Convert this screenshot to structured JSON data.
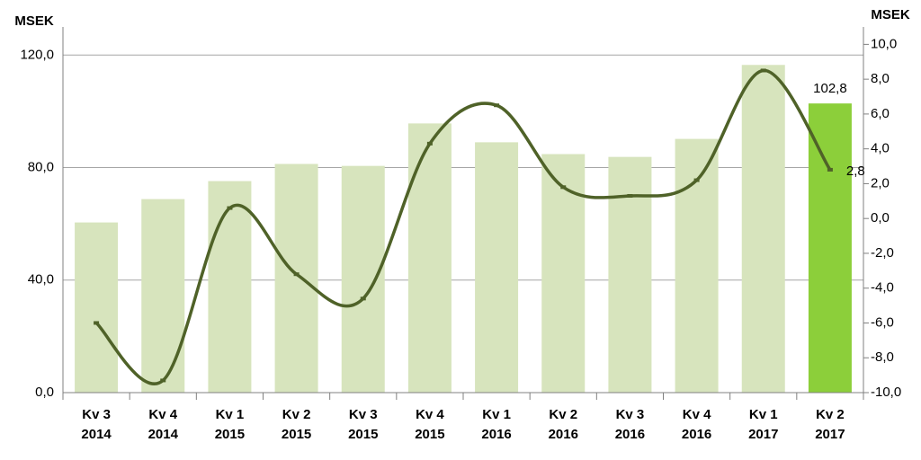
{
  "chart_data": {
    "type": "bar-line",
    "y_label": "MSEK",
    "y2_label": "MSEK",
    "categories": [
      "Kv 3\n2014",
      "Kv 4\n2014",
      "Kv 1\n2015",
      "Kv 2\n2015",
      "Kv 3\n2015",
      "Kv 4\n2015",
      "Kv 1\n2016",
      "Kv 2\n2016",
      "Kv 3\n2016",
      "Kv 4\n2016",
      "Kv 1\n2017",
      "Kv 2\n2017"
    ],
    "series": [
      {
        "type": "bar",
        "colors": [
          "#d7e4bd",
          "#d7e4bd",
          "#d7e4bd",
          "#d7e4bd",
          "#d7e4bd",
          "#d7e4bd",
          "#d7e4bd",
          "#d7e4bd",
          "#d7e4bd",
          "#d7e4bd",
          "#d7e4bd",
          "#8ccf3a"
        ],
        "values": [
          60.5,
          68.8,
          75.2,
          81.3,
          80.6,
          95.7,
          89.0,
          84.8,
          83.8,
          90.2,
          116.5,
          102.8
        ],
        "value_labels": [
          null,
          null,
          null,
          null,
          null,
          null,
          null,
          null,
          null,
          null,
          null,
          "102,8"
        ]
      },
      {
        "type": "line",
        "axis": "y2",
        "color": "#4f6228",
        "smooth": true,
        "values": [
          -6.0,
          -9.3,
          0.6,
          -3.2,
          -4.6,
          4.3,
          6.5,
          1.8,
          1.3,
          2.2,
          8.5,
          2.8
        ],
        "value_labels": [
          null,
          null,
          null,
          null,
          null,
          null,
          null,
          null,
          null,
          null,
          null,
          "2,8"
        ]
      }
    ],
    "ylim": [
      0,
      130
    ],
    "yticks": [
      {
        "value": 0,
        "label": "0,0"
      },
      {
        "value": 40,
        "label": "40,0"
      },
      {
        "value": 80,
        "label": "80,0"
      },
      {
        "value": 120,
        "label": "120,0"
      }
    ],
    "y2lim": [
      -10,
      11
    ],
    "y2ticks": [
      {
        "value": -10,
        "label": "-10,0"
      },
      {
        "value": -8,
        "label": "-8,0"
      },
      {
        "value": -6,
        "label": "-6,0"
      },
      {
        "value": -4,
        "label": "-4,0"
      },
      {
        "value": -2,
        "label": "-2,0"
      },
      {
        "value": 0,
        "label": "0,0"
      },
      {
        "value": 2,
        "label": "2,0"
      },
      {
        "value": 4,
        "label": "4,0"
      },
      {
        "value": 6,
        "label": "6,0"
      },
      {
        "value": 8,
        "label": "8,0"
      },
      {
        "value": 10,
        "label": "10,0"
      }
    ],
    "grid": true
  }
}
